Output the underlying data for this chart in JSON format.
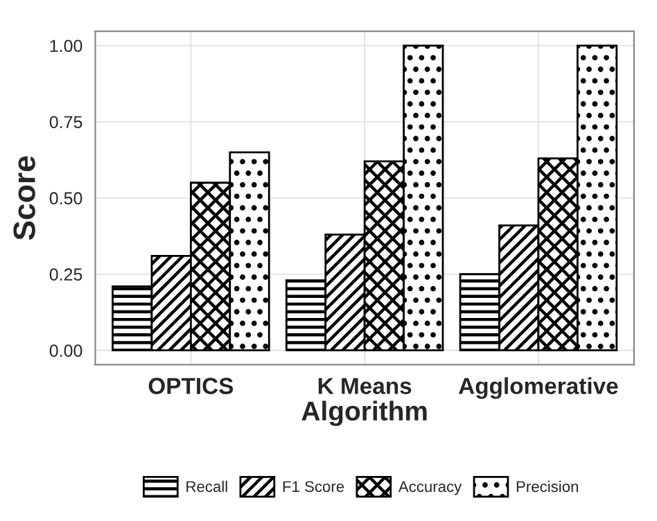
{
  "chart_data": {
    "type": "bar",
    "xlabel": "Algorithm",
    "ylabel": "Score",
    "categories": [
      "OPTICS",
      "K Means",
      "Agglomerative"
    ],
    "series": [
      {
        "name": "Recall",
        "color": "#000000",
        "values": [
          0.21,
          0.23,
          0.25
        ]
      },
      {
        "name": "F1 Score",
        "color": "#000000",
        "values": [
          0.31,
          0.38,
          0.41
        ]
      },
      {
        "name": "Accuracy",
        "color": "#000000",
        "values": [
          0.55,
          0.62,
          0.63
        ]
      },
      {
        "name": "Precision",
        "color": "#000000",
        "values": [
          0.65,
          1.0,
          1.0
        ]
      }
    ],
    "ylim": [
      -0.047,
      1.047
    ],
    "yticks": [
      {
        "value": 0,
        "label": "0.00"
      },
      {
        "value": 0.25,
        "label": "0.25"
      },
      {
        "value": 0.5,
        "label": "0.50"
      },
      {
        "value": 0.75,
        "label": "0.75"
      },
      {
        "value": 1,
        "label": "1.00"
      }
    ],
    "grid": true,
    "legend": "bottom"
  }
}
